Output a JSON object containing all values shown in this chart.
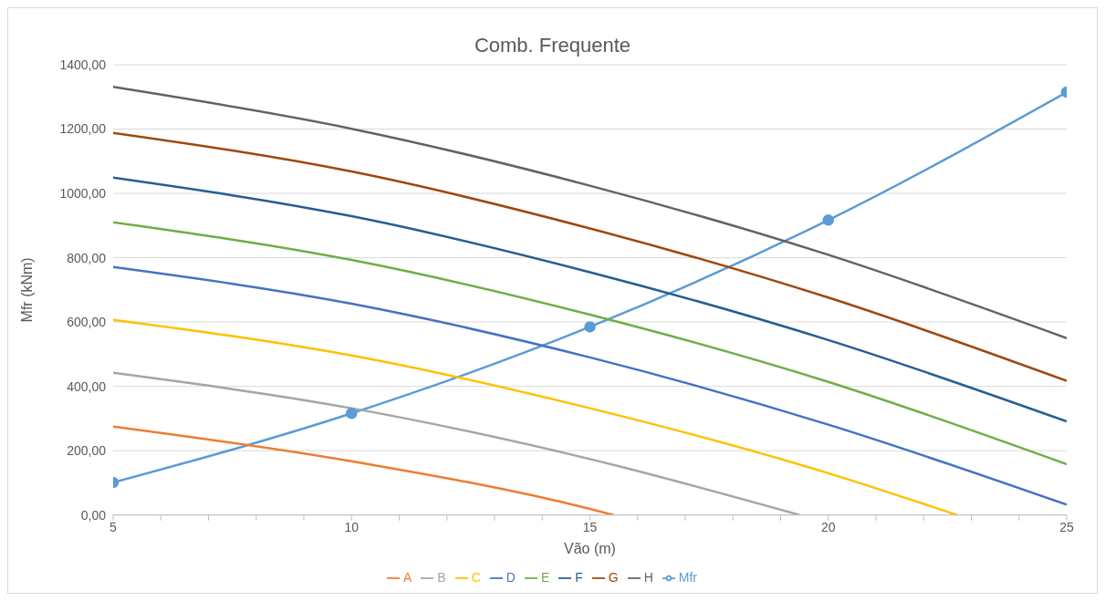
{
  "chart_data": {
    "type": "line",
    "title": "Comb. Frequente",
    "xlabel": "Vão (m)",
    "ylabel": "Mfr (kNm)",
    "xlim": [
      5,
      25
    ],
    "xticks": [
      5,
      {
        "value": 6,
        "label": null
      },
      {
        "value": 7,
        "label": null
      },
      {
        "value": 8,
        "label": null
      },
      {
        "value": 9,
        "label": null
      },
      10,
      {
        "value": 11,
        "label": null
      },
      {
        "value": 12,
        "label": null
      },
      {
        "value": 13,
        "label": null
      },
      {
        "value": 14,
        "label": null
      },
      15,
      {
        "value": 16,
        "label": null
      },
      {
        "value": 17,
        "label": null
      },
      {
        "value": 18,
        "label": null
      },
      {
        "value": 19,
        "label": null
      },
      20,
      {
        "value": 21,
        "label": null
      },
      {
        "value": 22,
        "label": null
      },
      {
        "value": 23,
        "label": null
      },
      {
        "value": 24,
        "label": null
      },
      25
    ],
    "ylim": [
      0,
      1400
    ],
    "yticks": [
      {
        "value": 0,
        "label": "0,00"
      },
      {
        "value": 200,
        "label": "200,00"
      },
      {
        "value": 400,
        "label": "400,00"
      },
      {
        "value": 600,
        "label": "600,00"
      },
      {
        "value": 800,
        "label": "800,00"
      },
      {
        "value": 1000,
        "label": "1000,00"
      },
      {
        "value": 1200,
        "label": "1200,00"
      },
      {
        "value": 1400,
        "label": "1400,00"
      }
    ],
    "grid": "y",
    "legend": "bottom",
    "line_style": "solid",
    "series": [
      {
        "name": "Mfr",
        "color": "#5b9bd5",
        "marker": "circle",
        "x": [
          5,
          10,
          15,
          20,
          25
        ],
        "values": [
          101,
          316,
          585,
          917,
          1315
        ]
      },
      {
        "name": "A",
        "color": "#ed7d31",
        "marker": "none",
        "x": [
          5,
          10,
          15,
          15.5
        ],
        "values": [
          275,
          167,
          19,
          0
        ]
      },
      {
        "name": "B",
        "color": "#a5a5a5",
        "marker": "none",
        "x": [
          5,
          10,
          15,
          19.4
        ],
        "values": [
          442,
          332,
          174,
          0
        ]
      },
      {
        "name": "C",
        "color": "#ffc000",
        "marker": "none",
        "x": [
          5,
          10,
          15,
          20,
          22.7
        ],
        "values": [
          607,
          496,
          332,
          130,
          0
        ]
      },
      {
        "name": "D",
        "color": "#4472c4",
        "marker": "none",
        "x": [
          5,
          10,
          15,
          20,
          25
        ],
        "values": [
          771,
          657,
          490,
          281,
          32
        ]
      },
      {
        "name": "E",
        "color": "#70ad47",
        "marker": "none",
        "x": [
          5,
          10,
          15,
          20,
          25
        ],
        "values": [
          910,
          793,
          623,
          414,
          158
        ]
      },
      {
        "name": "F",
        "color": "#255e91",
        "marker": "none",
        "x": [
          5,
          10,
          15,
          20,
          25
        ],
        "values": [
          1049,
          929,
          755,
          544,
          291
        ]
      },
      {
        "name": "G",
        "color": "#9e480e",
        "marker": "none",
        "x": [
          5,
          10,
          15,
          20,
          25
        ],
        "values": [
          1188,
          1068,
          891,
          676,
          417
        ]
      },
      {
        "name": "H",
        "color": "#636363",
        "marker": "none",
        "x": [
          5,
          10,
          15,
          20,
          25
        ],
        "values": [
          1331,
          1201,
          1024,
          809,
          550
        ]
      }
    ]
  }
}
